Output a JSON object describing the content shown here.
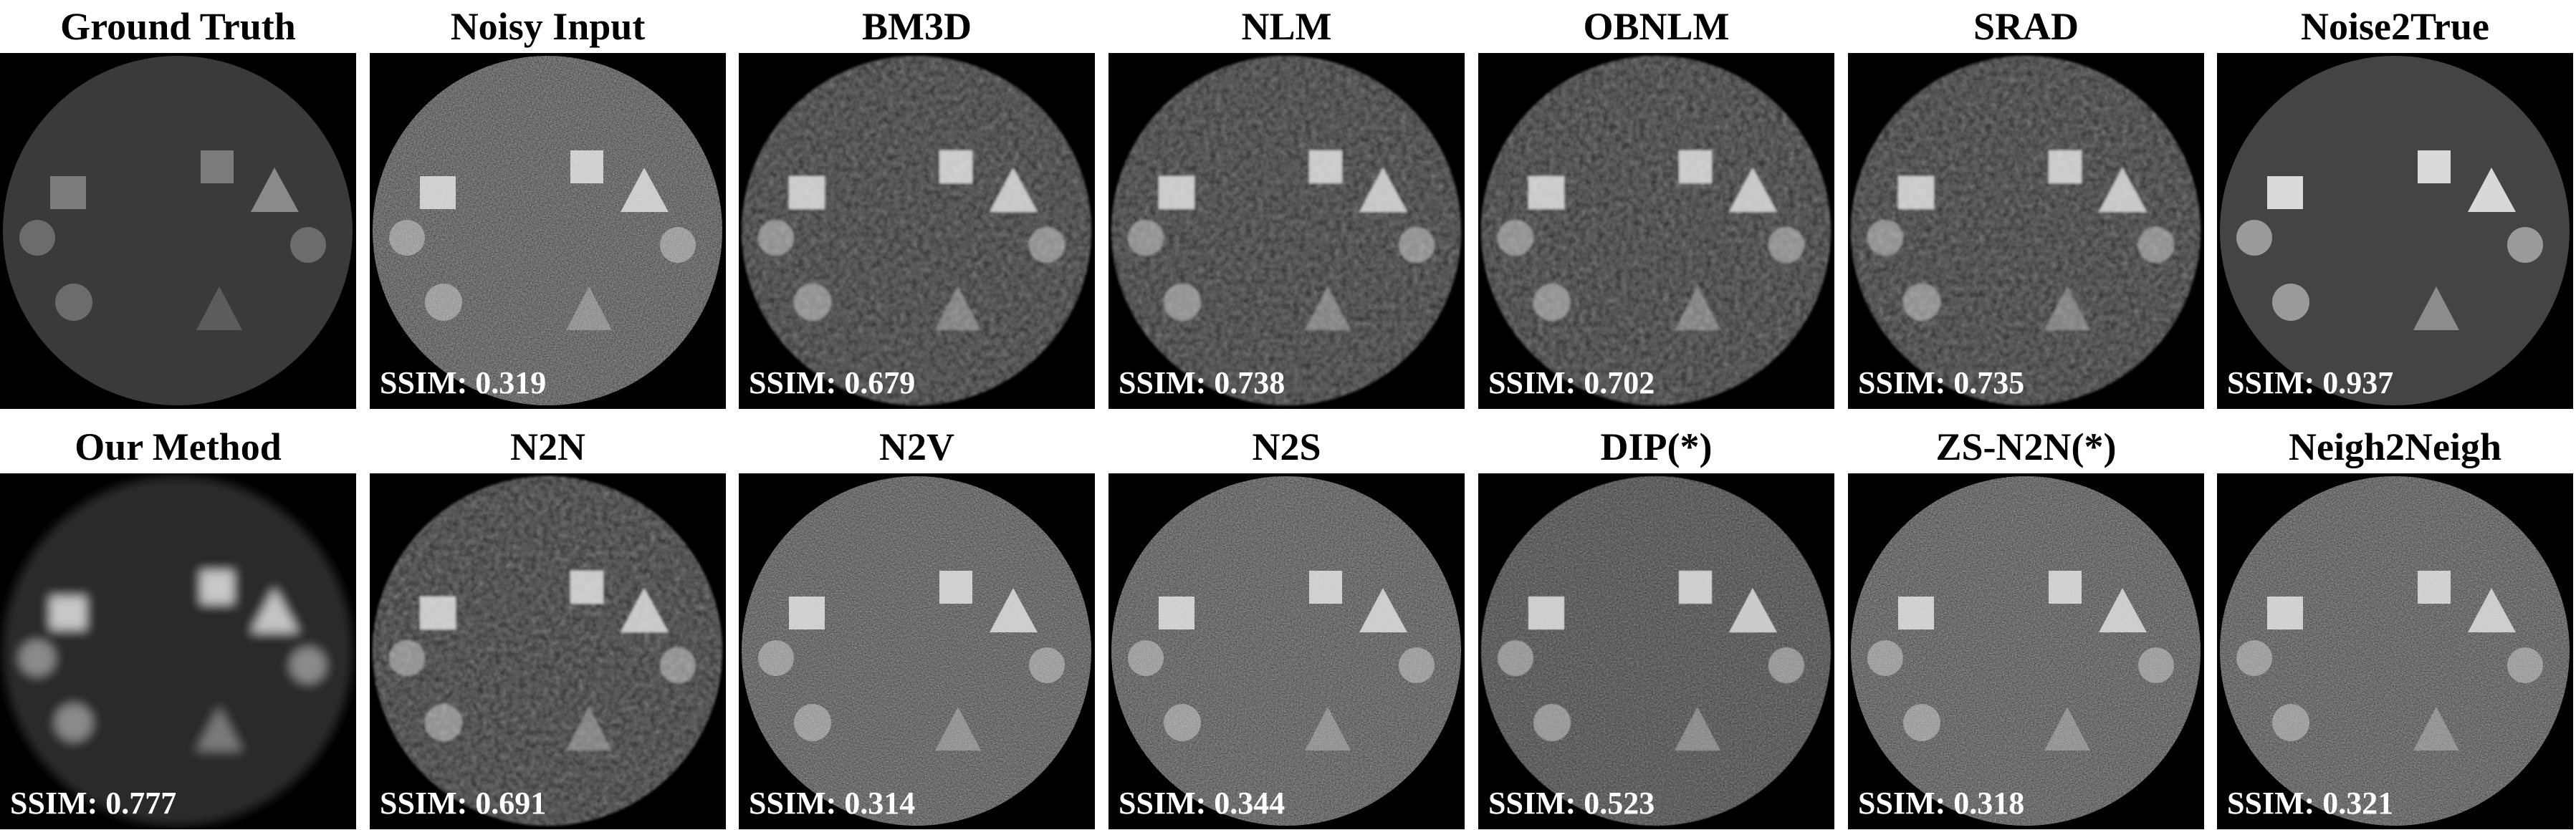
{
  "panels": [
    {
      "title": "Ground Truth",
      "ssim": "",
      "style": "clean-truth"
    },
    {
      "title": "Noisy Input",
      "ssim": "SSIM: 0.319",
      "style": "noisy-heavy"
    },
    {
      "title": "BM3D",
      "ssim": "SSIM: 0.679",
      "style": "smooth-grain"
    },
    {
      "title": "NLM",
      "ssim": "SSIM: 0.738",
      "style": "smooth-grain"
    },
    {
      "title": "OBNLM",
      "ssim": "SSIM: 0.702",
      "style": "smooth-grain"
    },
    {
      "title": "SRAD",
      "ssim": "SSIM: 0.735",
      "style": "smooth-grain"
    },
    {
      "title": "Noise2True",
      "ssim": "SSIM: 0.937",
      "style": "clean-light"
    },
    {
      "title": "Our Method",
      "ssim": "SSIM: 0.777",
      "style": "blurred"
    },
    {
      "title": "N2N",
      "ssim": "SSIM: 0.691",
      "style": "smooth-grain"
    },
    {
      "title": "N2V",
      "ssim": "SSIM: 0.314",
      "style": "noisy-heavy"
    },
    {
      "title": "N2S",
      "ssim": "SSIM: 0.344",
      "style": "noisy-heavy"
    },
    {
      "title": "DIP(*)",
      "ssim": "SSIM: 0.523",
      "style": "noisy-medium"
    },
    {
      "title": "ZS-N2N(*)",
      "ssim": "SSIM: 0.318",
      "style": "noisy-heavy"
    },
    {
      "title": "Neigh2Neigh",
      "ssim": "SSIM: 0.321",
      "style": "noisy-heavy"
    }
  ]
}
